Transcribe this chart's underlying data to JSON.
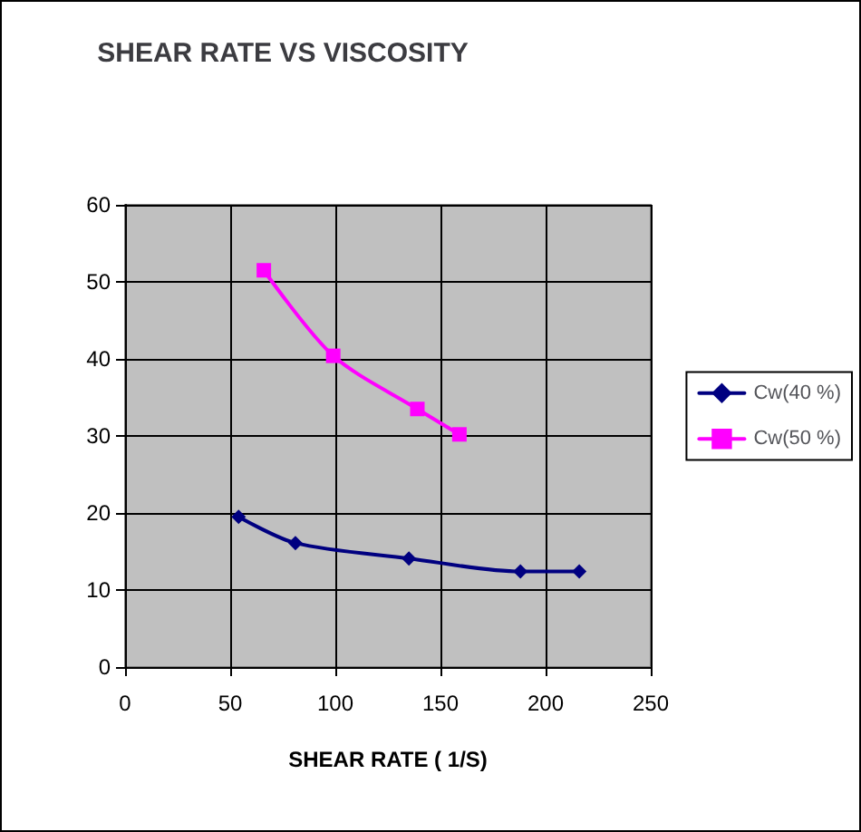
{
  "chart_data": {
    "type": "line",
    "title": "SHEAR RATE VS VISCOSITY",
    "xlabel": "SHEAR RATE ( 1/S)",
    "xlim": [
      0,
      250
    ],
    "xticks": [
      0,
      50,
      100,
      150,
      200,
      250
    ],
    "ylim": [
      0,
      60
    ],
    "yticks": [
      0,
      10,
      20,
      30,
      40,
      50,
      60
    ],
    "grid": true,
    "legend": "right",
    "series": [
      {
        "name": "Cw(40 %)",
        "color": "#000080",
        "marker": "diamond",
        "x": [
          54,
          81,
          135,
          188,
          216
        ],
        "values": [
          19.5,
          16.1,
          14.1,
          12.4,
          12.4
        ]
      },
      {
        "name": "Cw(50 %)",
        "color": "#ff00ff",
        "marker": "square",
        "x": [
          66,
          99,
          139,
          159
        ],
        "values": [
          51.5,
          40.4,
          33.5,
          30.2
        ]
      }
    ]
  }
}
